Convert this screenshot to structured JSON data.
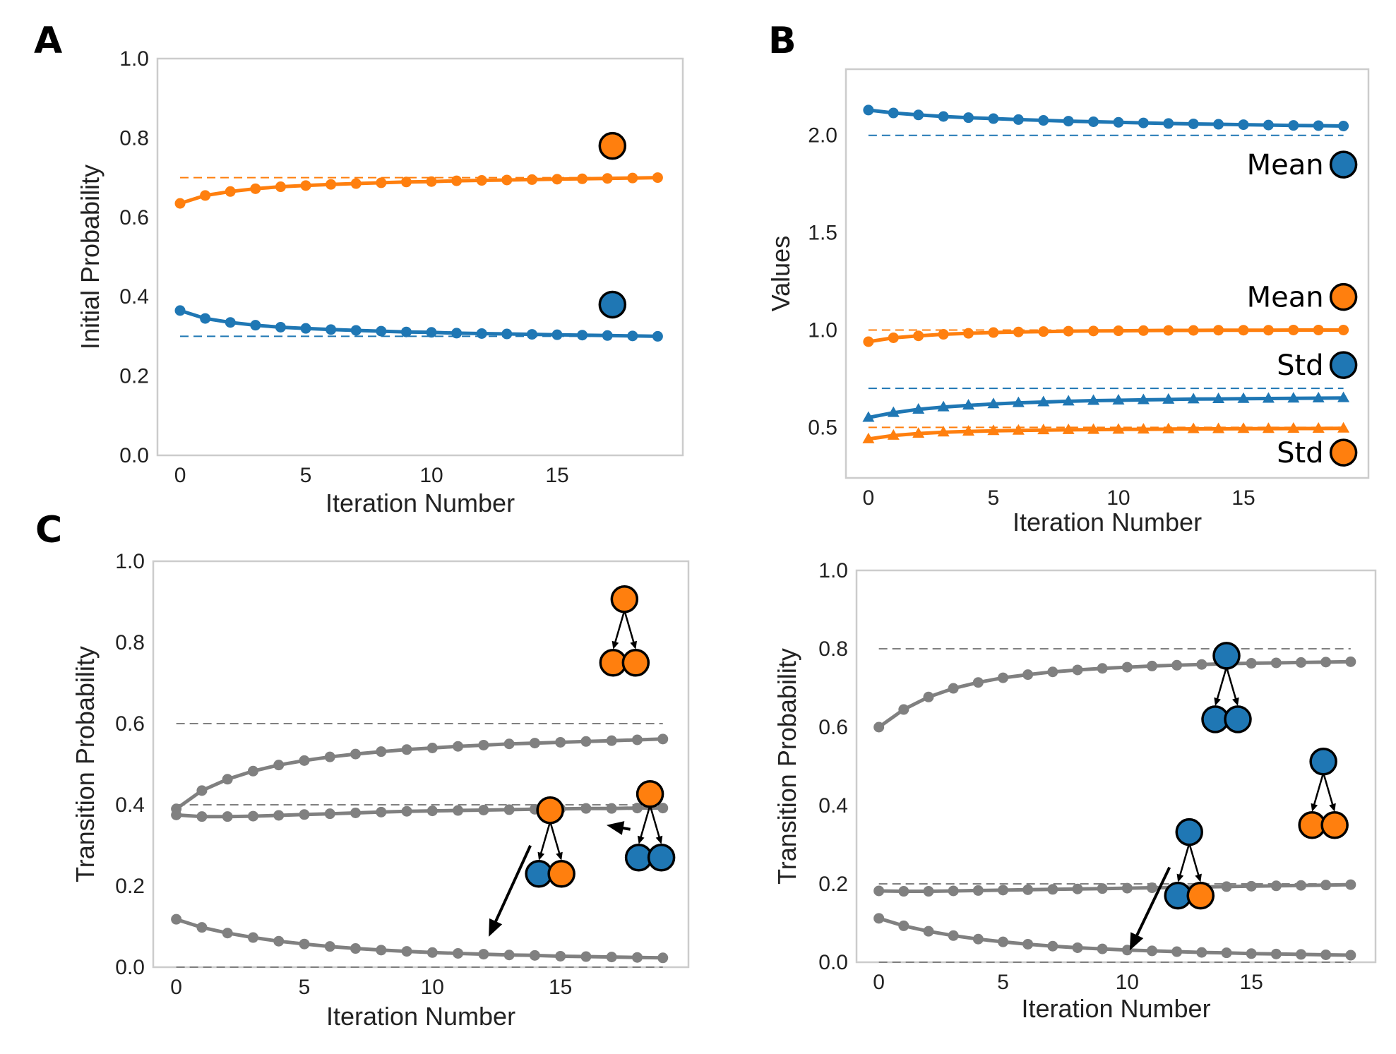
{
  "colors": {
    "blue": "#1f77b4",
    "orange": "#ff7f0e",
    "gray": "#808080"
  },
  "panel_labels": {
    "a": "A",
    "b": "B",
    "c": "C"
  },
  "chart_data": [
    {
      "id": "A",
      "type": "line",
      "xlabel": "Iteration Number",
      "ylabel": "Initial Probability",
      "xlim": [
        -0.9,
        20
      ],
      "ylim": [
        0,
        1
      ],
      "xticks": [
        0,
        5,
        10,
        15
      ],
      "xtick_labels": [
        "0",
        "5",
        "10",
        "15"
      ],
      "yticks": [
        0,
        0.2,
        0.4,
        0.6,
        0.8,
        1.0
      ],
      "ytick_labels": [
        "0.0",
        "0.2",
        "0.4",
        "0.6",
        "0.8",
        "1.0"
      ],
      "x": [
        0,
        1,
        2,
        3,
        4,
        5,
        6,
        7,
        8,
        9,
        10,
        11,
        12,
        13,
        14,
        15,
        16,
        17,
        18,
        19
      ],
      "series": [
        {
          "name": "orange state",
          "color": "orange",
          "marker": "circle",
          "values": [
            0.635,
            0.655,
            0.665,
            0.672,
            0.677,
            0.68,
            0.683,
            0.685,
            0.687,
            0.689,
            0.69,
            0.692,
            0.693,
            0.694,
            0.695,
            0.696,
            0.697,
            0.698,
            0.699,
            0.7
          ]
        },
        {
          "name": "blue state",
          "color": "blue",
          "marker": "circle",
          "values": [
            0.365,
            0.345,
            0.335,
            0.328,
            0.323,
            0.32,
            0.317,
            0.315,
            0.313,
            0.311,
            0.31,
            0.308,
            0.307,
            0.306,
            0.305,
            0.304,
            0.303,
            0.302,
            0.301,
            0.3
          ]
        }
      ],
      "reference_lines": [
        {
          "y": 0.7,
          "color": "orange"
        },
        {
          "y": 0.3,
          "color": "blue"
        }
      ],
      "legend_markers": [
        {
          "state": "orange",
          "x": 17.2,
          "y": 0.78
        },
        {
          "state": "blue",
          "x": 17.2,
          "y": 0.38
        }
      ]
    },
    {
      "id": "B",
      "type": "line",
      "xlabel": "Iteration Number",
      "ylabel": "Values",
      "xlim": [
        -0.9,
        20
      ],
      "ylim": [
        0.24,
        2.34
      ],
      "xticks": [
        0,
        5,
        10,
        15
      ],
      "xtick_labels": [
        "0",
        "5",
        "10",
        "15"
      ],
      "yticks": [
        0.5,
        1.0,
        1.5,
        2.0
      ],
      "ytick_labels": [
        "0.5",
        "1.0",
        "1.5",
        "2.0"
      ],
      "x": [
        0,
        1,
        2,
        3,
        4,
        5,
        6,
        7,
        8,
        9,
        10,
        11,
        12,
        13,
        14,
        15,
        16,
        17,
        18,
        19
      ],
      "series": [
        {
          "name": "Mean (blue)",
          "color": "blue",
          "marker": "circle",
          "values": [
            2.13,
            2.115,
            2.105,
            2.097,
            2.091,
            2.086,
            2.081,
            2.077,
            2.073,
            2.07,
            2.067,
            2.064,
            2.061,
            2.059,
            2.057,
            2.055,
            2.053,
            2.051,
            2.05,
            2.048
          ]
        },
        {
          "name": "Mean (orange)",
          "color": "orange",
          "marker": "circle",
          "values": [
            0.94,
            0.96,
            0.97,
            0.978,
            0.983,
            0.987,
            0.99,
            0.992,
            0.994,
            0.995,
            0.996,
            0.997,
            0.998,
            0.998,
            0.999,
            0.999,
            0.999,
            1.0,
            1.0,
            1.0
          ]
        },
        {
          "name": "Std (blue)",
          "color": "blue",
          "marker": "triangle",
          "values": [
            0.55,
            0.575,
            0.592,
            0.604,
            0.613,
            0.62,
            0.626,
            0.63,
            0.634,
            0.637,
            0.639,
            0.641,
            0.643,
            0.645,
            0.646,
            0.647,
            0.648,
            0.649,
            0.65,
            0.651
          ]
        },
        {
          "name": "Std (orange)",
          "color": "orange",
          "marker": "triangle",
          "values": [
            0.44,
            0.458,
            0.468,
            0.475,
            0.479,
            0.482,
            0.484,
            0.486,
            0.487,
            0.488,
            0.489,
            0.49,
            0.491,
            0.492,
            0.492,
            0.493,
            0.493,
            0.494,
            0.494,
            0.495
          ]
        }
      ],
      "reference_lines": [
        {
          "y": 2.0,
          "color": "blue"
        },
        {
          "y": 1.0,
          "color": "orange"
        },
        {
          "y": 0.7,
          "color": "blue"
        },
        {
          "y": 0.5,
          "color": "orange"
        }
      ],
      "legend": [
        {
          "text": "Mean",
          "state": "blue",
          "x": 19.0,
          "y": 1.85
        },
        {
          "text": "Mean",
          "state": "orange",
          "x": 19.0,
          "y": 1.17
        },
        {
          "text": "Std",
          "state": "blue",
          "x": 19.0,
          "y": 0.82
        },
        {
          "text": "Std",
          "state": "orange",
          "x": 19.0,
          "y": 0.37
        }
      ]
    },
    {
      "id": "C-left",
      "type": "line",
      "xlabel": "Iteration Number",
      "ylabel": "Transition Probability",
      "xlim": [
        -0.9,
        20
      ],
      "ylim": [
        0,
        1
      ],
      "xticks": [
        0,
        5,
        10,
        15
      ],
      "xtick_labels": [
        "0",
        "5",
        "10",
        "15"
      ],
      "yticks": [
        0,
        0.2,
        0.4,
        0.6,
        0.8,
        1.0
      ],
      "ytick_labels": [
        "0.0",
        "0.2",
        "0.4",
        "0.6",
        "0.8",
        "1.0"
      ],
      "x": [
        0,
        1,
        2,
        3,
        4,
        5,
        6,
        7,
        8,
        9,
        10,
        11,
        12,
        13,
        14,
        15,
        16,
        17,
        18,
        19
      ],
      "series": [
        {
          "name": "orange to orange",
          "color": "gray",
          "marker": "circle",
          "values": [
            0.39,
            0.435,
            0.463,
            0.483,
            0.498,
            0.509,
            0.518,
            0.525,
            0.531,
            0.536,
            0.54,
            0.544,
            0.547,
            0.55,
            0.552,
            0.554,
            0.556,
            0.558,
            0.56,
            0.562
          ]
        },
        {
          "name": "orange to blue",
          "color": "gray",
          "marker": "circle",
          "values": [
            0.375,
            0.371,
            0.371,
            0.372,
            0.374,
            0.376,
            0.378,
            0.38,
            0.382,
            0.384,
            0.385,
            0.386,
            0.387,
            0.388,
            0.389,
            0.39,
            0.391,
            0.391,
            0.392,
            0.392
          ]
        },
        {
          "name": "blue to orange",
          "color": "gray",
          "marker": "circle",
          "values": [
            0.118,
            0.098,
            0.084,
            0.073,
            0.064,
            0.057,
            0.051,
            0.046,
            0.042,
            0.039,
            0.036,
            0.034,
            0.032,
            0.03,
            0.029,
            0.027,
            0.026,
            0.025,
            0.024,
            0.023
          ]
        }
      ],
      "reference_lines": [
        {
          "y": 0.6,
          "color": "gray"
        },
        {
          "y": 0.4,
          "color": "gray"
        },
        {
          "y": 0.0,
          "color": "gray"
        }
      ],
      "transition_icons": [
        {
          "parent": "orange",
          "children": [
            "orange",
            "orange"
          ],
          "x": 17.5,
          "y": 0.75,
          "arrow_to": null
        },
        {
          "parent": "orange",
          "children": [
            "blue",
            "orange"
          ],
          "x": 14.6,
          "y": 0.23,
          "arrow_to": [
            12.2,
            0.075
          ]
        },
        {
          "parent": "orange",
          "children": [
            "blue",
            "blue"
          ],
          "x": 18.5,
          "y": 0.27,
          "arrow_to": [
            16.8,
            0.35
          ]
        }
      ]
    },
    {
      "id": "C-right",
      "type": "line",
      "xlabel": "Iteration Number",
      "ylabel": "Transition Probability",
      "xlim": [
        -0.9,
        20
      ],
      "ylim": [
        0,
        1
      ],
      "xticks": [
        0,
        5,
        10,
        15
      ],
      "xtick_labels": [
        "0",
        "5",
        "10",
        "15"
      ],
      "yticks": [
        0,
        0.2,
        0.4,
        0.6,
        0.8,
        1.0
      ],
      "ytick_labels": [
        "0.0",
        "0.2",
        "0.4",
        "0.6",
        "0.8",
        "1.0"
      ],
      "x": [
        0,
        1,
        2,
        3,
        4,
        5,
        6,
        7,
        8,
        9,
        10,
        11,
        12,
        13,
        14,
        15,
        16,
        17,
        18,
        19
      ],
      "series": [
        {
          "name": "blue to blue",
          "color": "gray",
          "marker": "circle",
          "values": [
            0.6,
            0.645,
            0.677,
            0.699,
            0.714,
            0.726,
            0.734,
            0.741,
            0.746,
            0.75,
            0.753,
            0.756,
            0.758,
            0.76,
            0.762,
            0.763,
            0.764,
            0.765,
            0.766,
            0.767
          ]
        },
        {
          "name": "blue to orange",
          "color": "gray",
          "marker": "circle",
          "values": [
            0.182,
            0.181,
            0.181,
            0.182,
            0.183,
            0.184,
            0.185,
            0.186,
            0.187,
            0.188,
            0.189,
            0.19,
            0.191,
            0.192,
            0.193,
            0.194,
            0.195,
            0.196,
            0.197,
            0.198
          ]
        },
        {
          "name": "orange to blue",
          "color": "gray",
          "marker": "circle",
          "values": [
            0.112,
            0.093,
            0.079,
            0.068,
            0.059,
            0.052,
            0.046,
            0.041,
            0.037,
            0.034,
            0.031,
            0.029,
            0.027,
            0.025,
            0.024,
            0.022,
            0.021,
            0.02,
            0.019,
            0.018
          ]
        }
      ],
      "reference_lines": [
        {
          "y": 0.8,
          "color": "gray"
        },
        {
          "y": 0.2,
          "color": "gray"
        },
        {
          "y": 0.0,
          "color": "gray"
        }
      ],
      "transition_icons": [
        {
          "parent": "blue",
          "children": [
            "blue",
            "blue"
          ],
          "x": 14.0,
          "y": 0.62,
          "arrow_to": null
        },
        {
          "parent": "blue",
          "children": [
            "orange",
            "orange"
          ],
          "x": 17.9,
          "y": 0.35,
          "arrow_to": null
        },
        {
          "parent": "blue",
          "children": [
            "blue",
            "orange"
          ],
          "x": 12.5,
          "y": 0.17,
          "arrow_to": [
            10.1,
            0.03
          ]
        }
      ]
    }
  ]
}
